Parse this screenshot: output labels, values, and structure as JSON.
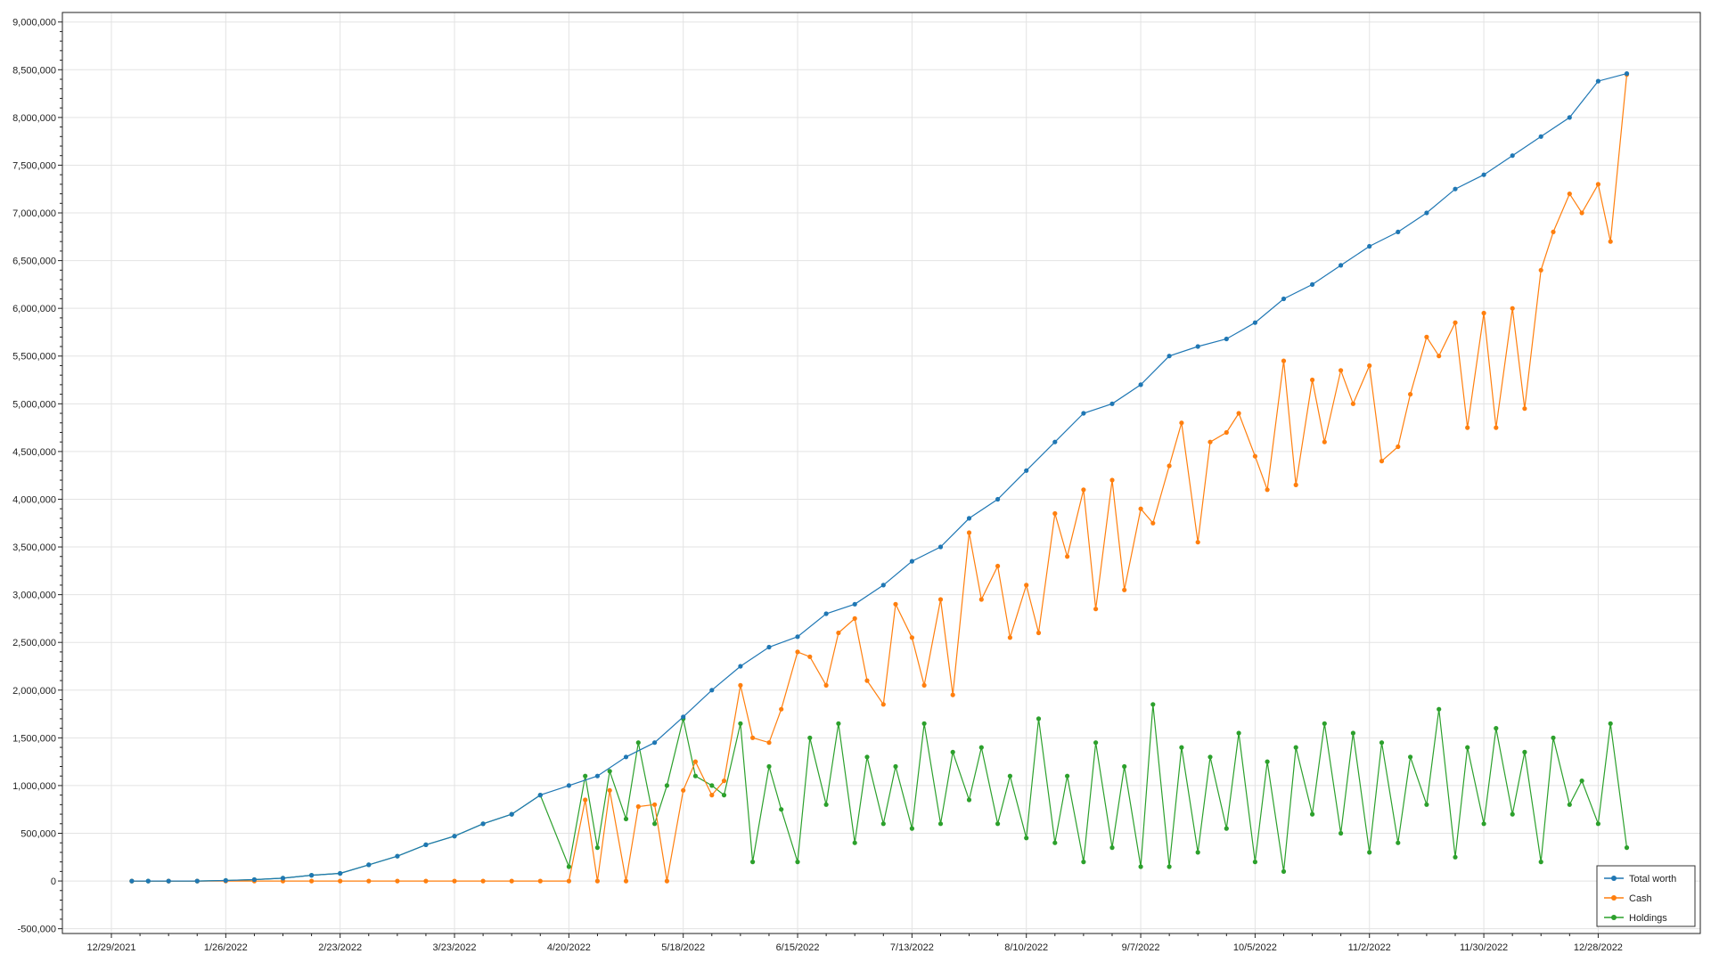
{
  "chart_data": {
    "type": "line",
    "title": "",
    "xlabel": "",
    "ylabel": "",
    "x_tick_labels": [
      "12/29/2021",
      "1/26/2022",
      "2/23/2022",
      "3/23/2022",
      "4/20/2022",
      "5/18/2022",
      "6/15/2022",
      "7/13/2022",
      "8/10/2022",
      "9/7/2022",
      "10/5/2022",
      "11/2/2022",
      "11/30/2022",
      "12/28/2022"
    ],
    "x_tick_days": [
      0,
      28,
      56,
      84,
      112,
      140,
      168,
      196,
      224,
      252,
      280,
      308,
      336,
      364
    ],
    "y_tick_labels": [
      "-500,000",
      "0",
      "500,000",
      "1,000,000",
      "1,500,000",
      "2,000,000",
      "2,500,000",
      "3,000,000",
      "3,500,000",
      "4,000,000",
      "4,500,000",
      "5,000,000",
      "5,500,000",
      "6,000,000",
      "6,500,000",
      "7,000,000",
      "7,500,000",
      "8,000,000",
      "8,500,000",
      "9,000,000"
    ],
    "x_range_days": [
      -12,
      389
    ],
    "ylim": [
      -550000,
      9100000
    ],
    "grid": true,
    "legend_position": "bottom-right",
    "series": [
      {
        "name": "Total worth",
        "color": "#1f77b4",
        "x": [
          5,
          9,
          14,
          21,
          28,
          35,
          42,
          49,
          56,
          63,
          70,
          77,
          84,
          91,
          98,
          105,
          112,
          119,
          126,
          133,
          140,
          147,
          154,
          161,
          168,
          175,
          182,
          189,
          196,
          203,
          210,
          217,
          224,
          231,
          238,
          245,
          252,
          259,
          266,
          273,
          280,
          287,
          294,
          301,
          308,
          315,
          322,
          329,
          336,
          343,
          350,
          357,
          364,
          371
        ],
        "y": [
          0,
          0,
          0,
          0,
          5000,
          15000,
          30000,
          60000,
          80000,
          170000,
          260000,
          380000,
          470000,
          600000,
          700000,
          900000,
          1000000,
          1100000,
          1300000,
          1450000,
          1720000,
          2000000,
          2250000,
          2450000,
          2560000,
          2800000,
          2900000,
          3100000,
          3350000,
          3500000,
          3800000,
          4000000,
          4300000,
          4600000,
          4900000,
          5000000,
          5200000,
          5500000,
          5600000,
          5680000,
          5850000,
          6100000,
          6250000,
          6450000,
          6650000,
          6800000,
          7000000,
          7250000,
          7400000,
          7600000,
          7800000,
          8000000,
          8380000,
          8460000
        ]
      },
      {
        "name": "Cash",
        "color": "#ff7f0e",
        "x": [
          5,
          14,
          21,
          28,
          35,
          42,
          49,
          56,
          63,
          70,
          77,
          84,
          91,
          98,
          105,
          112,
          116,
          119,
          122,
          126,
          129,
          133,
          136,
          140,
          143,
          147,
          150,
          154,
          157,
          161,
          164,
          168,
          171,
          175,
          178,
          182,
          185,
          189,
          192,
          196,
          199,
          203,
          206,
          210,
          213,
          217,
          220,
          224,
          227,
          231,
          234,
          238,
          241,
          245,
          248,
          252,
          255,
          259,
          262,
          266,
          269,
          273,
          276,
          280,
          283,
          287,
          290,
          294,
          297,
          301,
          304,
          308,
          311,
          315,
          318,
          322,
          325,
          329,
          332,
          336,
          339,
          343,
          346,
          350,
          353,
          357,
          360,
          364,
          367,
          371
        ],
        "y": [
          0,
          0,
          0,
          0,
          0,
          0,
          0,
          0,
          0,
          0,
          0,
          0,
          0,
          0,
          0,
          0,
          850000,
          0,
          950000,
          0,
          780000,
          800000,
          0,
          950000,
          1250000,
          900000,
          1050000,
          2050000,
          1500000,
          1450000,
          1800000,
          2400000,
          2350000,
          2050000,
          2600000,
          2750000,
          2100000,
          1850000,
          2900000,
          2550000,
          2050000,
          2950000,
          1950000,
          3650000,
          2950000,
          3300000,
          2550000,
          3100000,
          2600000,
          3850000,
          3400000,
          4100000,
          2850000,
          4200000,
          3050000,
          3900000,
          3750000,
          4350000,
          4800000,
          3550000,
          4600000,
          4700000,
          4900000,
          4450000,
          4100000,
          5450000,
          4150000,
          5250000,
          4600000,
          5350000,
          5000000,
          5400000,
          4400000,
          4550000,
          5100000,
          5700000,
          5500000,
          5850000,
          4750000,
          5950000,
          4750000,
          6000000,
          4950000,
          6400000,
          6800000,
          7200000,
          7000000,
          7300000,
          6700000,
          8450000
        ]
      },
      {
        "name": "Holdings",
        "color": "#2ca02c",
        "x": [
          5,
          9,
          14,
          21,
          28,
          35,
          42,
          49,
          56,
          63,
          70,
          77,
          84,
          91,
          98,
          105,
          112,
          116,
          119,
          122,
          126,
          129,
          133,
          136,
          140,
          143,
          147,
          150,
          154,
          157,
          161,
          164,
          168,
          171,
          175,
          178,
          182,
          185,
          189,
          192,
          196,
          199,
          203,
          206,
          210,
          213,
          217,
          220,
          224,
          227,
          231,
          234,
          238,
          241,
          245,
          248,
          252,
          255,
          259,
          262,
          266,
          269,
          273,
          276,
          280,
          283,
          287,
          290,
          294,
          297,
          301,
          304,
          308,
          311,
          315,
          318,
          322,
          325,
          329,
          332,
          336,
          339,
          343,
          346,
          350,
          353,
          357,
          360,
          364,
          367,
          371
        ],
        "y": [
          0,
          0,
          0,
          0,
          5000,
          15000,
          30000,
          60000,
          80000,
          170000,
          260000,
          380000,
          470000,
          600000,
          700000,
          900000,
          150000,
          1100000,
          350000,
          1150000,
          650000,
          1450000,
          600000,
          1000000,
          1700000,
          1100000,
          1000000,
          900000,
          1650000,
          200000,
          1200000,
          750000,
          200000,
          1500000,
          800000,
          1650000,
          400000,
          1300000,
          600000,
          1200000,
          550000,
          1650000,
          600000,
          1350000,
          850000,
          1400000,
          600000,
          1100000,
          450000,
          1700000,
          400000,
          1100000,
          200000,
          1450000,
          350000,
          1200000,
          150000,
          1850000,
          150000,
          1400000,
          300000,
          1300000,
          550000,
          1550000,
          200000,
          1250000,
          100000,
          1400000,
          700000,
          1650000,
          500000,
          1550000,
          300000,
          1450000,
          400000,
          1300000,
          800000,
          1800000,
          250000,
          1400000,
          600000,
          1600000,
          700000,
          1350000,
          200000,
          1500000,
          800000,
          1050000,
          600000,
          1650000,
          350000
        ]
      }
    ]
  }
}
